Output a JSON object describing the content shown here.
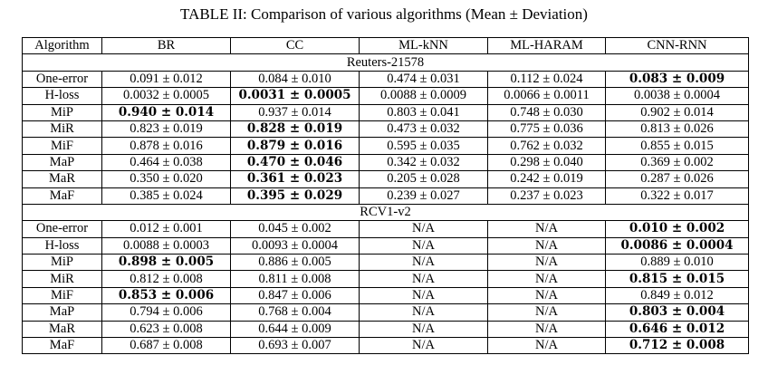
{
  "caption": "TABLE II: Comparison of various algorithms (Mean ± Deviation)",
  "columns": [
    "Algorithm",
    "BR",
    "CC",
    "ML-kNN",
    "ML-HARAM",
    "CNN-RNN"
  ],
  "sections": [
    {
      "title": "Reuters-21578",
      "rows": [
        {
          "metric": "One-error",
          "cells": [
            {
              "v": "0.091 ± 0.012",
              "bold": false
            },
            {
              "v": "0.084 ± 0.010",
              "bold": false
            },
            {
              "v": "0.474 ± 0.031",
              "bold": false
            },
            {
              "v": "0.112 ± 0.024",
              "bold": false
            },
            {
              "v": "0.083 ± 0.009",
              "bold": true
            }
          ]
        },
        {
          "metric": "H-loss",
          "cells": [
            {
              "v": "0.0032 ± 0.0005",
              "bold": false
            },
            {
              "v": "0.0031 ± 0.0005",
              "bold": true
            },
            {
              "v": "0.0088 ± 0.0009",
              "bold": false
            },
            {
              "v": "0.0066 ± 0.0011",
              "bold": false
            },
            {
              "v": "0.0038 ± 0.0004",
              "bold": false
            }
          ]
        },
        {
          "metric": "MiP",
          "cells": [
            {
              "v": "0.940 ± 0.014",
              "bold": true
            },
            {
              "v": "0.937 ± 0.014",
              "bold": false
            },
            {
              "v": "0.803 ± 0.041",
              "bold": false
            },
            {
              "v": "0.748 ± 0.030",
              "bold": false
            },
            {
              "v": "0.902 ± 0.014",
              "bold": false
            }
          ]
        },
        {
          "metric": "MiR",
          "cells": [
            {
              "v": "0.823 ± 0.019",
              "bold": false
            },
            {
              "v": "0.828 ± 0.019",
              "bold": true
            },
            {
              "v": "0.473 ± 0.032",
              "bold": false
            },
            {
              "v": "0.775 ± 0.036",
              "bold": false
            },
            {
              "v": "0.813 ± 0.026",
              "bold": false
            }
          ]
        },
        {
          "metric": "MiF",
          "cells": [
            {
              "v": "0.878 ± 0.016",
              "bold": false
            },
            {
              "v": "0.879 ± 0.016",
              "bold": true
            },
            {
              "v": "0.595 ± 0.035",
              "bold": false
            },
            {
              "v": "0.762 ± 0.032",
              "bold": false
            },
            {
              "v": "0.855 ± 0.015",
              "bold": false
            }
          ]
        },
        {
          "metric": "MaP",
          "cells": [
            {
              "v": "0.464 ± 0.038",
              "bold": false
            },
            {
              "v": "0.470 ± 0.046",
              "bold": true
            },
            {
              "v": "0.342 ± 0.032",
              "bold": false
            },
            {
              "v": "0.298 ± 0.040",
              "bold": false
            },
            {
              "v": "0.369 ± 0.002",
              "bold": false
            }
          ]
        },
        {
          "metric": "MaR",
          "cells": [
            {
              "v": "0.350 ± 0.020",
              "bold": false
            },
            {
              "v": "0.361 ± 0.023",
              "bold": true
            },
            {
              "v": "0.205 ± 0.028",
              "bold": false
            },
            {
              "v": "0.242 ± 0.019",
              "bold": false
            },
            {
              "v": "0.287 ± 0.026",
              "bold": false
            }
          ]
        },
        {
          "metric": "MaF",
          "cells": [
            {
              "v": "0.385 ± 0.024",
              "bold": false
            },
            {
              "v": "0.395 ± 0.029",
              "bold": true
            },
            {
              "v": "0.239 ± 0.027",
              "bold": false
            },
            {
              "v": "0.237 ± 0.023",
              "bold": false
            },
            {
              "v": "0.322 ± 0.017",
              "bold": false
            }
          ]
        }
      ]
    },
    {
      "title": "RCV1-v2",
      "rows": [
        {
          "metric": "One-error",
          "cells": [
            {
              "v": "0.012 ± 0.001",
              "bold": false
            },
            {
              "v": "0.045 ± 0.002",
              "bold": false
            },
            {
              "v": "N/A",
              "bold": false
            },
            {
              "v": "N/A",
              "bold": false
            },
            {
              "v": "0.010 ± 0.002",
              "bold": true
            }
          ]
        },
        {
          "metric": "H-loss",
          "cells": [
            {
              "v": "0.0088 ± 0.0003",
              "bold": false
            },
            {
              "v": "0.0093 ± 0.0004",
              "bold": false
            },
            {
              "v": "N/A",
              "bold": false
            },
            {
              "v": "N/A",
              "bold": false
            },
            {
              "v": "0.0086 ± 0.0004",
              "bold": true
            }
          ]
        },
        {
          "metric": "MiP",
          "cells": [
            {
              "v": "0.898 ± 0.005",
              "bold": true
            },
            {
              "v": "0.886 ± 0.005",
              "bold": false
            },
            {
              "v": "N/A",
              "bold": false
            },
            {
              "v": "N/A",
              "bold": false
            },
            {
              "v": "0.889 ± 0.010",
              "bold": false
            }
          ]
        },
        {
          "metric": "MiR",
          "cells": [
            {
              "v": "0.812 ± 0.008",
              "bold": false
            },
            {
              "v": "0.811 ± 0.008",
              "bold": false
            },
            {
              "v": "N/A",
              "bold": false
            },
            {
              "v": "N/A",
              "bold": false
            },
            {
              "v": "0.815 ± 0.015",
              "bold": true
            }
          ]
        },
        {
          "metric": "MiF",
          "cells": [
            {
              "v": "0.853 ± 0.006",
              "bold": true
            },
            {
              "v": "0.847 ± 0.006",
              "bold": false
            },
            {
              "v": "N/A",
              "bold": false
            },
            {
              "v": "N/A",
              "bold": false
            },
            {
              "v": "0.849 ± 0.012",
              "bold": false
            }
          ]
        },
        {
          "metric": "MaP",
          "cells": [
            {
              "v": "0.794 ± 0.006",
              "bold": false
            },
            {
              "v": "0.768 ± 0.004",
              "bold": false
            },
            {
              "v": "N/A",
              "bold": false
            },
            {
              "v": "N/A",
              "bold": false
            },
            {
              "v": "0.803 ± 0.004",
              "bold": true
            }
          ]
        },
        {
          "metric": "MaR",
          "cells": [
            {
              "v": "0.623 ± 0.008",
              "bold": false
            },
            {
              "v": "0.644 ± 0.009",
              "bold": false
            },
            {
              "v": "N/A",
              "bold": false
            },
            {
              "v": "N/A",
              "bold": false
            },
            {
              "v": "0.646 ± 0.012",
              "bold": true
            }
          ]
        },
        {
          "metric": "MaF",
          "cells": [
            {
              "v": "0.687 ± 0.008",
              "bold": false
            },
            {
              "v": "0.693 ± 0.007",
              "bold": false
            },
            {
              "v": "N/A",
              "bold": false
            },
            {
              "v": "N/A",
              "bold": false
            },
            {
              "v": "0.712 ± 0.008",
              "bold": true
            }
          ]
        }
      ]
    }
  ]
}
